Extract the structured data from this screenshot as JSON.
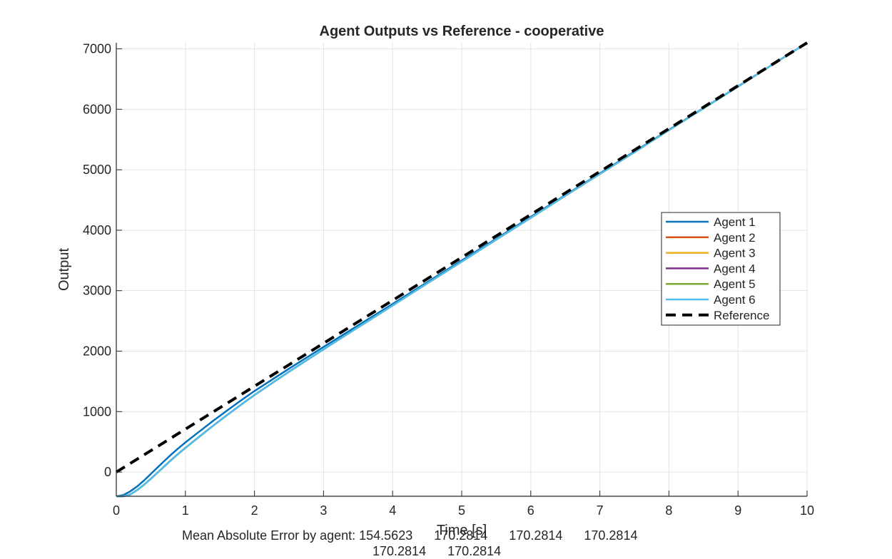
{
  "chart_data": {
    "type": "line",
    "title": "Agent Outputs vs Reference - cooperative",
    "xlabel": "Time [s]",
    "ylabel": "Output",
    "xlim": [
      0,
      10
    ],
    "ylim": [
      -400,
      7100
    ],
    "xticks": [
      0,
      1,
      2,
      3,
      4,
      5,
      6,
      7,
      8,
      9,
      10
    ],
    "yticks": [
      0,
      1000,
      2000,
      3000,
      4000,
      5000,
      6000,
      7000
    ],
    "grid": true,
    "legend_position": "east",
    "series": [
      {
        "name": "Agent 1",
        "color": "#0072BD",
        "style": "solid",
        "x": [
          0,
          0.1,
          0.2,
          0.3,
          0.4,
          0.5,
          0.6,
          0.7,
          0.8,
          0.9,
          1.0,
          1.2,
          1.4,
          1.6,
          1.8,
          2.0,
          2.5,
          3.0,
          3.5,
          4.0,
          4.5,
          5.0,
          5.5,
          6.0,
          6.5,
          7.0,
          7.5,
          8.0,
          8.5,
          9.0,
          9.5,
          10.0
        ],
        "y": [
          -400,
          -380,
          -320,
          -240,
          -140,
          -30,
          80,
          190,
          295,
          395,
          490,
          670,
          845,
          1015,
          1180,
          1340,
          1710,
          2070,
          2425,
          2780,
          3140,
          3500,
          3860,
          4220,
          4580,
          4940,
          5300,
          5660,
          6020,
          6380,
          6740,
          7100
        ]
      },
      {
        "name": "Agent 2",
        "color": "#D95319",
        "style": "solid",
        "x": [
          0,
          0.1,
          0.2,
          0.3,
          0.4,
          0.5,
          0.6,
          0.7,
          0.8,
          0.9,
          1.0,
          1.2,
          1.4,
          1.6,
          1.8,
          2.0,
          2.5,
          3.0,
          3.5,
          4.0,
          4.5,
          5.0,
          5.5,
          6.0,
          6.5,
          7.0,
          7.5,
          8.0,
          8.5,
          9.0,
          9.5,
          10.0
        ],
        "y": [
          -400,
          -400,
          -370,
          -300,
          -210,
          -110,
          -5,
          100,
          205,
          305,
          400,
          585,
          765,
          940,
          1110,
          1275,
          1660,
          2030,
          2395,
          2755,
          3120,
          3480,
          3845,
          4205,
          4570,
          4930,
          5290,
          5655,
          6015,
          6375,
          6740,
          7100
        ]
      },
      {
        "name": "Agent 3",
        "color": "#EDB120",
        "style": "solid",
        "x": [
          0,
          0.1,
          0.2,
          0.3,
          0.4,
          0.5,
          0.6,
          0.7,
          0.8,
          0.9,
          1.0,
          1.2,
          1.4,
          1.6,
          1.8,
          2.0,
          2.5,
          3.0,
          3.5,
          4.0,
          4.5,
          5.0,
          5.5,
          6.0,
          6.5,
          7.0,
          7.5,
          8.0,
          8.5,
          9.0,
          9.5,
          10.0
        ],
        "y": [
          -400,
          -400,
          -370,
          -300,
          -210,
          -110,
          -5,
          100,
          205,
          305,
          400,
          585,
          765,
          940,
          1110,
          1275,
          1660,
          2030,
          2395,
          2755,
          3120,
          3480,
          3845,
          4205,
          4570,
          4930,
          5290,
          5655,
          6015,
          6375,
          6740,
          7100
        ]
      },
      {
        "name": "Agent 4",
        "color": "#7E2F8E",
        "style": "solid",
        "x": [
          0,
          0.1,
          0.2,
          0.3,
          0.4,
          0.5,
          0.6,
          0.7,
          0.8,
          0.9,
          1.0,
          1.2,
          1.4,
          1.6,
          1.8,
          2.0,
          2.5,
          3.0,
          3.5,
          4.0,
          4.5,
          5.0,
          5.5,
          6.0,
          6.5,
          7.0,
          7.5,
          8.0,
          8.5,
          9.0,
          9.5,
          10.0
        ],
        "y": [
          -400,
          -400,
          -370,
          -300,
          -210,
          -110,
          -5,
          100,
          205,
          305,
          400,
          585,
          765,
          940,
          1110,
          1275,
          1660,
          2030,
          2395,
          2755,
          3120,
          3480,
          3845,
          4205,
          4570,
          4930,
          5290,
          5655,
          6015,
          6375,
          6740,
          7100
        ]
      },
      {
        "name": "Agent 5",
        "color": "#77AC30",
        "style": "solid",
        "x": [
          0,
          0.1,
          0.2,
          0.3,
          0.4,
          0.5,
          0.6,
          0.7,
          0.8,
          0.9,
          1.0,
          1.2,
          1.4,
          1.6,
          1.8,
          2.0,
          2.5,
          3.0,
          3.5,
          4.0,
          4.5,
          5.0,
          5.5,
          6.0,
          6.5,
          7.0,
          7.5,
          8.0,
          8.5,
          9.0,
          9.5,
          10.0
        ],
        "y": [
          -400,
          -400,
          -370,
          -300,
          -210,
          -110,
          -5,
          100,
          205,
          305,
          400,
          585,
          765,
          940,
          1110,
          1275,
          1660,
          2030,
          2395,
          2755,
          3120,
          3480,
          3845,
          4205,
          4570,
          4930,
          5290,
          5655,
          6015,
          6375,
          6740,
          7100
        ]
      },
      {
        "name": "Agent 6",
        "color": "#4DBEEE",
        "style": "solid",
        "x": [
          0,
          0.1,
          0.2,
          0.3,
          0.4,
          0.5,
          0.6,
          0.7,
          0.8,
          0.9,
          1.0,
          1.2,
          1.4,
          1.6,
          1.8,
          2.0,
          2.5,
          3.0,
          3.5,
          4.0,
          4.5,
          5.0,
          5.5,
          6.0,
          6.5,
          7.0,
          7.5,
          8.0,
          8.5,
          9.0,
          9.5,
          10.0
        ],
        "y": [
          -400,
          -400,
          -370,
          -300,
          -210,
          -110,
          -5,
          100,
          205,
          305,
          400,
          585,
          765,
          940,
          1110,
          1275,
          1660,
          2030,
          2395,
          2755,
          3120,
          3480,
          3845,
          4205,
          4570,
          4930,
          5290,
          5655,
          6015,
          6375,
          6740,
          7100
        ]
      },
      {
        "name": "Reference",
        "color": "#000000",
        "style": "dashed",
        "x": [
          0,
          10
        ],
        "y": [
          0,
          7100
        ]
      }
    ]
  },
  "footer": {
    "line1": "Mean Absolute Error by agent: 154.5623      170.2814      170.2814      170.2814",
    "line2": "170.2814      170.2814"
  }
}
